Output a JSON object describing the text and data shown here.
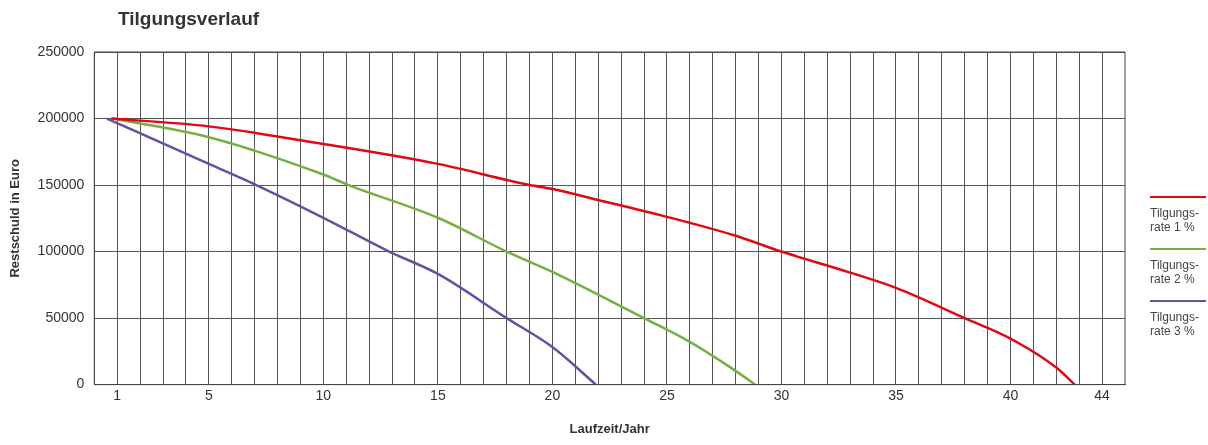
{
  "chart_data": {
    "type": "line",
    "title": "Tilgungsverlauf",
    "xlabel": "Laufzeit/Jahr",
    "ylabel": "Restschuld in Euro",
    "xlim": [
      0,
      45
    ],
    "ylim": [
      0,
      250000
    ],
    "xticks": [
      1,
      {
        "value": 2,
        "label": null
      },
      {
        "value": 3,
        "label": null
      },
      {
        "value": 4,
        "label": null
      },
      5,
      {
        "value": 6,
        "label": null
      },
      {
        "value": 7,
        "label": null
      },
      {
        "value": 8,
        "label": null
      },
      {
        "value": 9,
        "label": null
      },
      10,
      {
        "value": 11,
        "label": null
      },
      {
        "value": 12,
        "label": null
      },
      {
        "value": 13,
        "label": null
      },
      {
        "value": 14,
        "label": null
      },
      15,
      {
        "value": 16,
        "label": null
      },
      {
        "value": 17,
        "label": null
      },
      {
        "value": 18,
        "label": null
      },
      {
        "value": 19,
        "label": null
      },
      20,
      {
        "value": 21,
        "label": null
      },
      {
        "value": 22,
        "label": null
      },
      {
        "value": 23,
        "label": null
      },
      {
        "value": 24,
        "label": null
      },
      25,
      {
        "value": 26,
        "label": null
      },
      {
        "value": 27,
        "label": null
      },
      {
        "value": 28,
        "label": null
      },
      {
        "value": 29,
        "label": null
      },
      30,
      {
        "value": 31,
        "label": null
      },
      {
        "value": 32,
        "label": null
      },
      {
        "value": 33,
        "label": null
      },
      {
        "value": 34,
        "label": null
      },
      35,
      {
        "value": 36,
        "label": null
      },
      {
        "value": 37,
        "label": null
      },
      {
        "value": 38,
        "label": null
      },
      {
        "value": 39,
        "label": null
      },
      40,
      {
        "value": 41,
        "label": null
      },
      {
        "value": 42,
        "label": null
      },
      {
        "value": 43,
        "label": null
      },
      44
    ],
    "yticks": [
      0,
      50000,
      100000,
      150000,
      200000,
      250000
    ],
    "grid": true,
    "legend": "right",
    "marker": "none",
    "series": [
      {
        "name": "Tilgungs- rate 1 %",
        "color": "#e30613",
        "x": [
          0.75,
          5,
          10,
          15,
          19,
          20,
          22,
          25,
          28,
          30,
          33,
          35,
          38,
          40,
          42,
          42.8
        ],
        "values": [
          200000,
          194100,
          180900,
          165900,
          150000,
          147000,
          138800,
          126100,
          111900,
          100000,
          84200,
          72700,
          50000,
          34600,
          12800,
          0
        ]
      },
      {
        "name": "Tilgungs- rate 2 %",
        "color": "#76b043",
        "x": [
          0.8,
          5,
          10,
          11.1,
          15,
          18,
          20,
          22,
          24,
          26,
          28,
          28.85
        ],
        "values": [
          200000,
          185900,
          157900,
          150000,
          125400,
          100000,
          84700,
          67600,
          50000,
          32100,
          10300,
          0
        ]
      },
      {
        "name": "Tilgungs- rate 3 %",
        "color": "#5e54a4",
        "x": [
          0.55,
          5,
          7.07,
          10,
          12.87,
          15,
          18,
          20,
          21.9
        ],
        "values": [
          200000,
          165900,
          150000,
          125400,
          100000,
          83200,
          50000,
          28200,
          0
        ]
      }
    ]
  }
}
